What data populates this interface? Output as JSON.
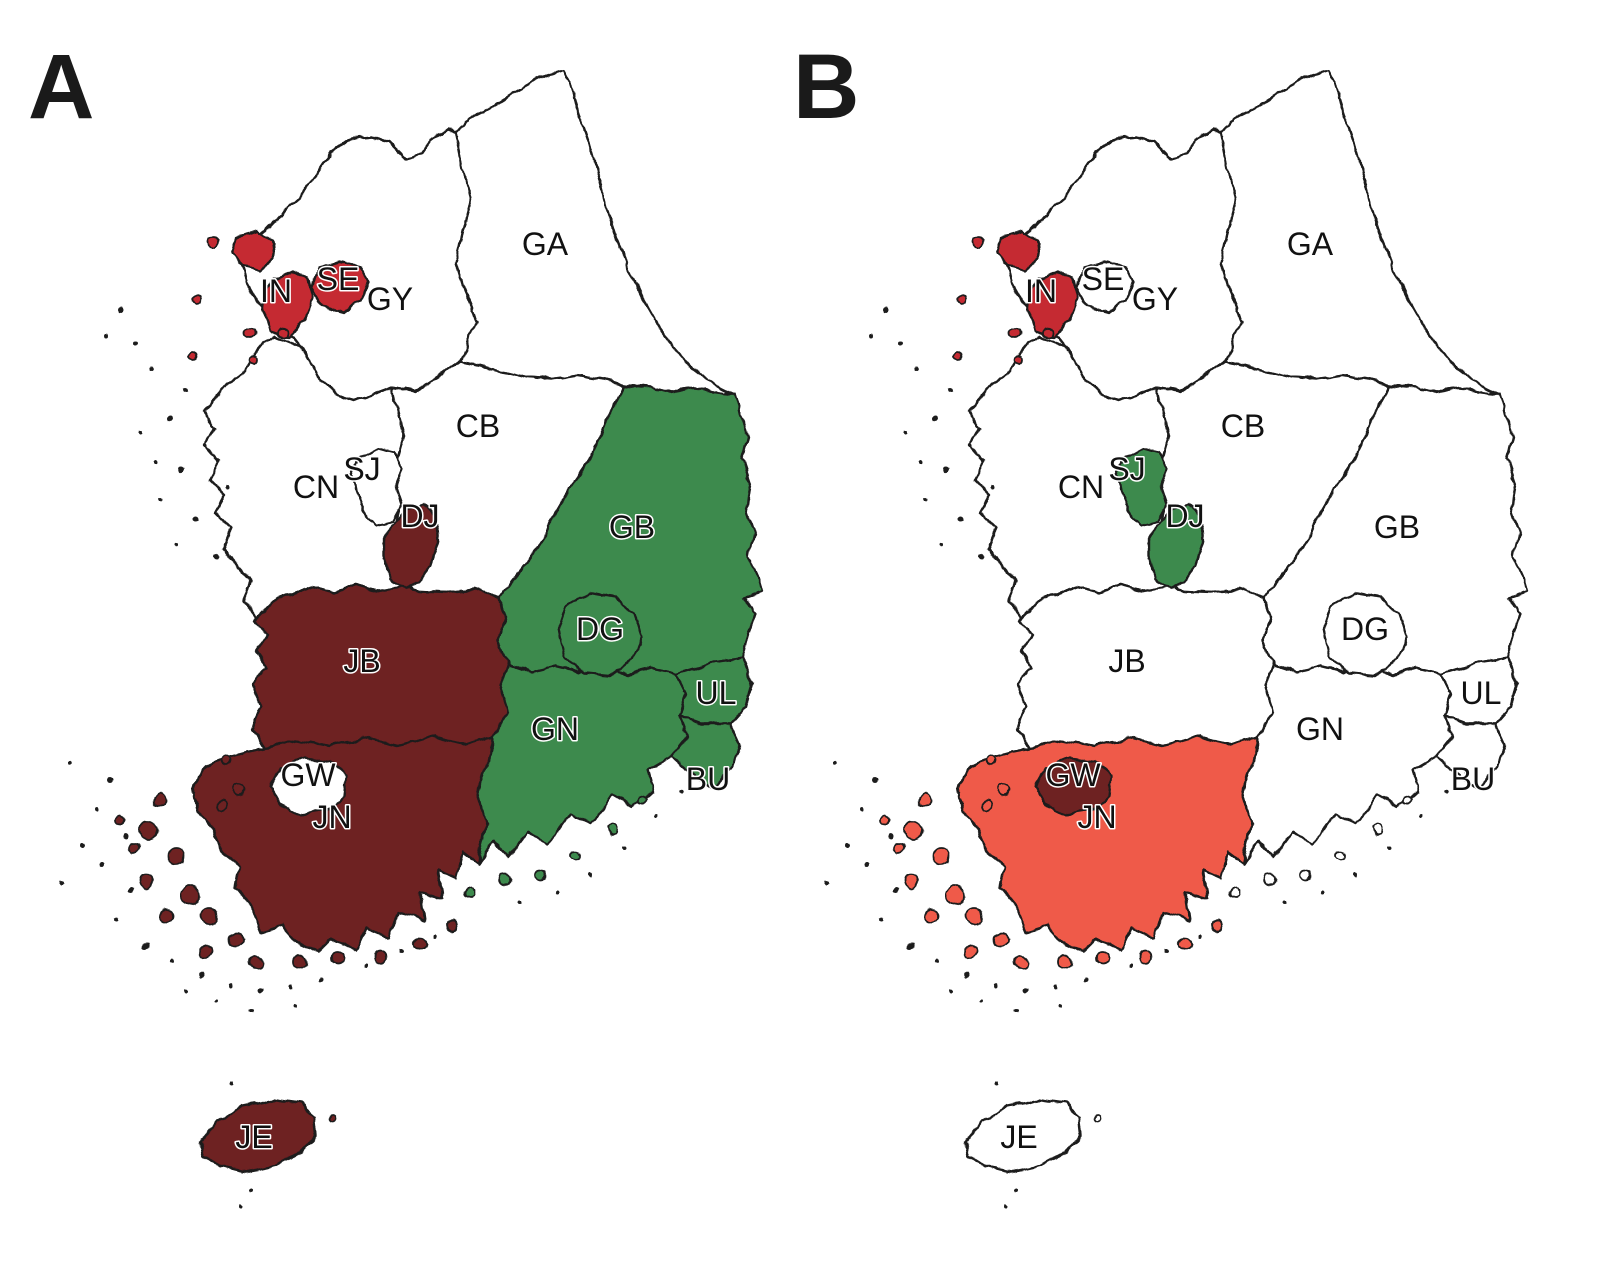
{
  "colors": {
    "highlight_red": "#c52b32",
    "dark_red": "#6e2022",
    "green": "#3d8a4e",
    "salmon": "#ef5a4a",
    "unfilled": "#ffffff",
    "outline": "#1e1e1e"
  },
  "region_labels": {
    "GA": "GA",
    "GY": "GY",
    "SE": "SE",
    "IN": "IN",
    "CB": "CB",
    "CN": "CN",
    "SJ": "SJ",
    "DJ": "DJ",
    "GB": "GB",
    "DG": "DG",
    "JB": "JB",
    "GN": "GN",
    "UL": "UL",
    "BU": "BU",
    "GW": "GW",
    "JN": "JN",
    "JE": "JE"
  },
  "panels": [
    {
      "label": "A",
      "region_fills": {
        "GA": "unfilled",
        "GY": "unfilled",
        "SE": "highlight_red",
        "IN": "highlight_red",
        "CB": "unfilled",
        "CN": "unfilled",
        "SJ": "unfilled",
        "DJ": "dark_red",
        "GB": "green",
        "DG": "green",
        "JB": "dark_red",
        "GN": "green",
        "UL": "green",
        "BU": "green",
        "GW": "unfilled",
        "JN": "dark_red",
        "JE": "dark_red"
      }
    },
    {
      "label": "B",
      "region_fills": {
        "GA": "unfilled",
        "GY": "unfilled",
        "SE": "unfilled",
        "IN": "highlight_red",
        "CB": "unfilled",
        "CN": "unfilled",
        "SJ": "green",
        "DJ": "green",
        "GB": "unfilled",
        "DG": "unfilled",
        "JB": "unfilled",
        "GN": "unfilled",
        "UL": "unfilled",
        "BU": "unfilled",
        "GW": "dark_red",
        "JN": "salmon",
        "JE": "unfilled"
      }
    }
  ]
}
